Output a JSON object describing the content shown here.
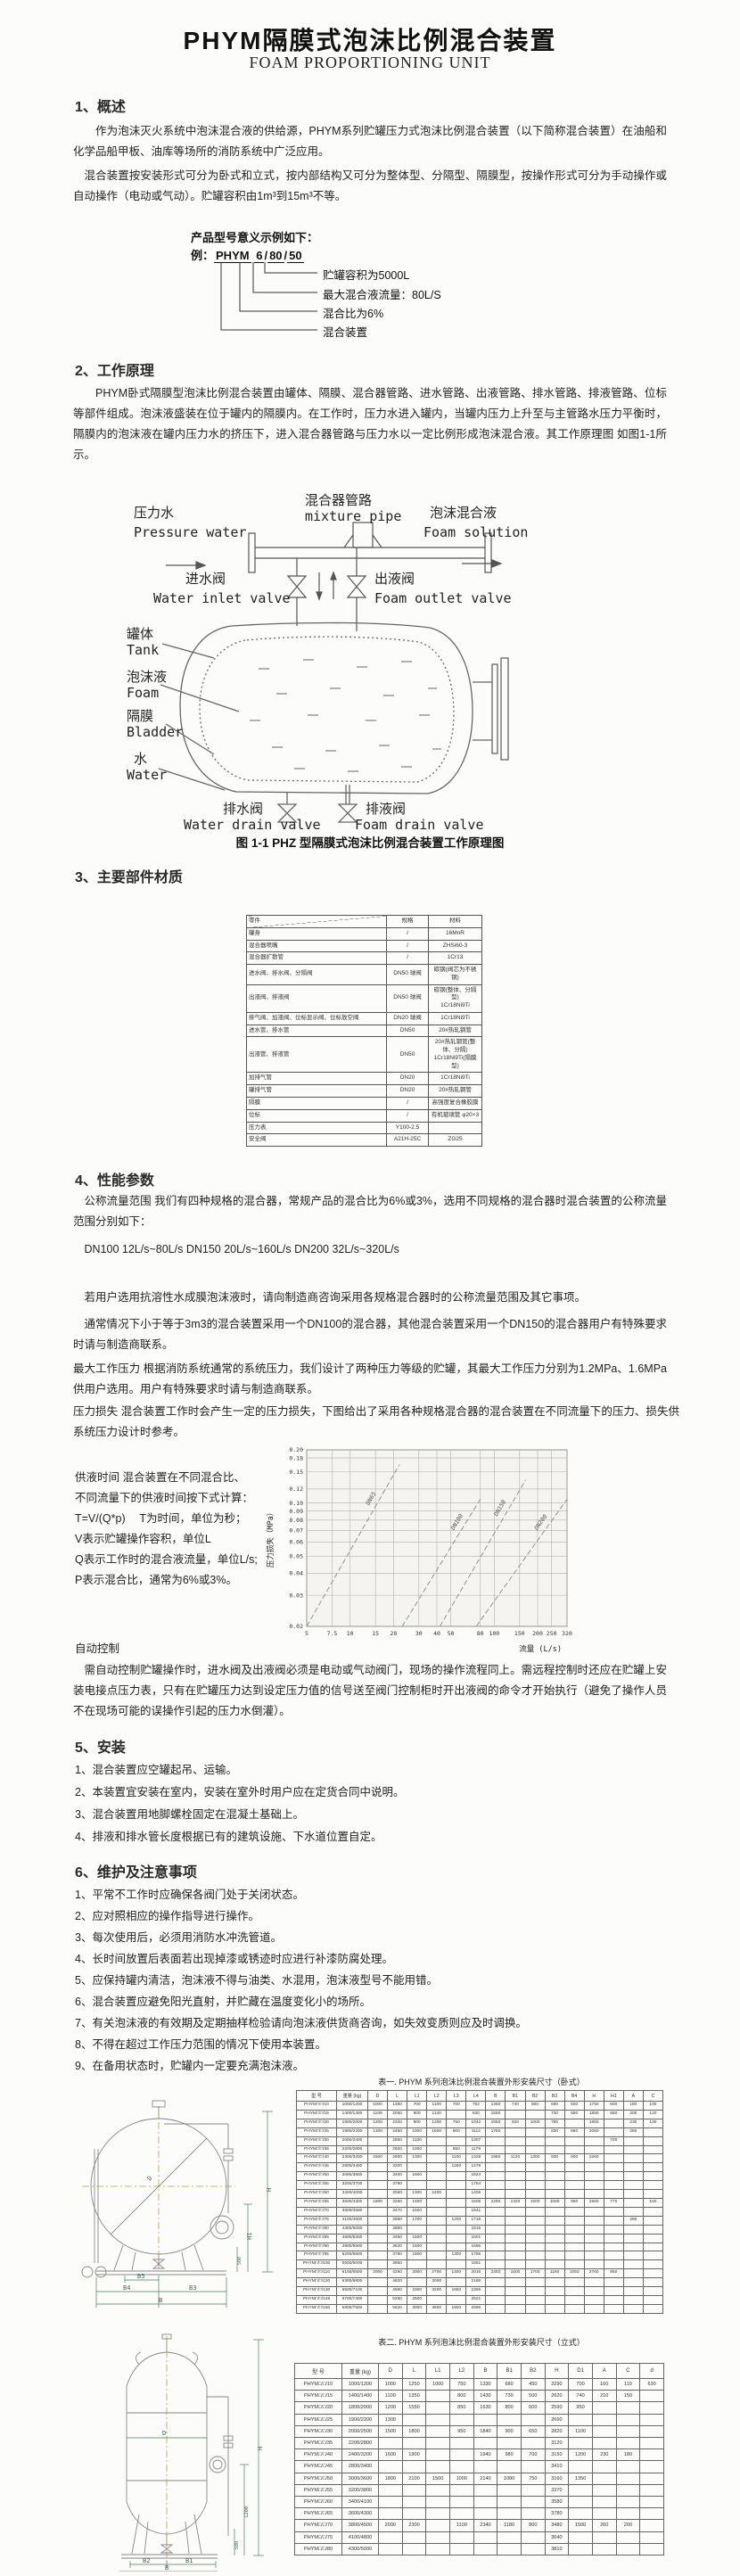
{
  "doc": {
    "title_zh": "PHYM隔膜式泡沫比例混合装置",
    "title_en": "FOAM PROPORTIONING UNIT"
  },
  "s1": {
    "heading": "1、概述",
    "p1": "作为泡沫灭火系统中泡沫混合液的供给源，PHYM系列贮罐压力式泡沫比例混合装置（以下简称混合装置）在油船和化学品船甲板、油库等场所的消防系统中广泛应用。",
    "p2": "混合装置按安装形式可分为卧式和立式，按内部结构又可分为整体型、分隔型、隔膜型，按操作形式可分为手动操作或自动操作（电动或气动）。贮罐容积由1m³到15m³不等。",
    "model_intro": "产品型号意义示例如下：",
    "model_prefix": "例：",
    "model_parts": [
      "PHYM",
      "6",
      "80",
      "50"
    ],
    "model_labels": [
      "贮罐容积为5000L",
      "最大混合液流量：80L/S",
      "混合比为6%",
      "混合装置"
    ]
  },
  "s2": {
    "heading": "2、工作原理",
    "p1": "PHYM卧式隔膜型泡沫比例混合装置由罐体、隔膜、混合器管路、进水管路、出液管路、排水管路、排液管路、位标等部件组成。泡沫液盛装在位于罐内的隔膜内。在工作时，压力水进入罐内，当罐内压力上升至与主管路水压力平衡时，隔膜内的泡沫液在罐内压力水的挤压下，进入混合器管路与压力水以一定比例形成泡沫混合液。其工作原理图 如图1-1所示。",
    "diagram": {
      "pressure_water_zh": "压力水",
      "pressure_water_en": "Pressure water",
      "mixture_pipe_zh": "混合器管路",
      "mixture_pipe_en": "mixture pipe",
      "foam_solution_zh": "泡沫混合液",
      "foam_solution_en": "Foam solution",
      "inlet_valve_zh": "进水阀",
      "inlet_valve_en": "Water inlet valve",
      "outlet_valve_zh": "出液阀",
      "outlet_valve_en": "Foam outlet valve",
      "tank_zh": "罐体",
      "tank_en": "Tank",
      "foam_zh": "泡沫液",
      "foam_en": "Foam",
      "bladder_zh": "隔膜",
      "bladder_en": "Bladder",
      "water_zh": "水",
      "water_en": "Water",
      "water_drain_zh": "排水阀",
      "water_drain_en": "Water drain valve",
      "foam_drain_zh": "排液阀",
      "foam_drain_en": "Foam drain valve",
      "caption": "图 1-1 PHZ 型隔膜式泡沫比例混合装置工作原理图"
    }
  },
  "s3": {
    "heading": "3、主要部件材质",
    "table": {
      "headers": [
        "零件",
        "规格",
        "材料"
      ],
      "rows": [
        [
          "罐身",
          "/",
          "16MnR"
        ],
        [
          "混合器喷嘴",
          "/",
          "ZHSi60-3"
        ],
        [
          "混合器扩散管",
          "/",
          "1Cr13"
        ],
        [
          "进水阀、排水阀、分隔阀",
          "DN50 球阀",
          "碳钢(阀芯为不锈钢)"
        ],
        [
          "出液阀、排液阀",
          "DN50 球阀",
          "碳钢(整体、分隔型)\n1Cr18Ni9Ti"
        ],
        [
          "排气阀、加液阀、位标显示阀、位标放空阀",
          "DN20 球阀",
          "1Cr18Ni9Ti"
        ],
        [
          "进水管、排水管",
          "DN50",
          "20#热轧钢管"
        ],
        [
          "出液管、排液管",
          "DN50",
          "20#热轧钢管(整体、分隔)\n1Cr18Ni9Ti(隔膜型)"
        ],
        [
          "加排气管",
          "DN20",
          "1Cr18Ni9Ti"
        ],
        [
          "罐排气管",
          "DN20",
          "20#热轧钢管"
        ],
        [
          "隔膜",
          "/",
          "高强度复合橡胶膜"
        ],
        [
          "位标",
          "/",
          "有机玻璃管 φ20×3"
        ],
        [
          "压力表",
          "Y100-2.5",
          ""
        ],
        [
          "安全阀",
          "A21H-25C",
          "ZG25"
        ]
      ]
    }
  },
  "s4": {
    "heading": "4、性能参数",
    "p_flow": "公称流量范围  我们有四种规格的混合器，常规产品的混合比为6%或3%，选用不同规格的混合器时混合装置的公称流量范围分别如下：",
    "p_dn": "DN100  12L/s~80L/s    DN150  20L/s~160L/s    DN200  32L/s~320L/s",
    "p_afff": "若用户选用抗溶性水成膜泡沫液时，请向制造商咨询采用各规格混合器时的公称流量范围及其它事项。",
    "p_usual": "通常情况下小于等于3m3的混合装置采用一个DN100的混合器，其他混合装置采用一个DN150的混合器用户有特殊要求时请与制造商联系。",
    "p_maxp": "最大工作压力 根据消防系统通常的系统压力，我们设计了两种压力等级的贮罐，其最大工作压力分别为1.2MPa、1.6MPa供用户选用。用户有特殊要求时请与制造商联系。",
    "p_loss": "压力损失  混合装置工作时会产生一定的压力损失，下图给出了采用各种规格混合器的混合装置在不同流量下的压力、损失供系统压力设计时参考。",
    "supply_lines": [
      "供液时间  混合装置在不同混合比、",
      "不同流量下的供液时间按下式计算：",
      "T=V/(Q*p)　 T为时间，单位为秒；",
      "V表示贮罐操作容积，单位L",
      "Q表示工作时的混合液流量，单位L/s;",
      "P表示混合比，通常为6%或3%。"
    ],
    "auto_heading": "自动控制",
    "auto_p": "需自动控制贮罐操作时，进水阀及出液阀必须是电动或气动阀门，现场的操作流程同上。需远程控制时还应在贮罐上安装电接点压力表，只有在贮罐压力达到设定压力值的信号送至阀门控制柜时开出液阀的命令才开始执行（避免了操作人员不在现场可能的误操作引起的压力水倒灌）。"
  },
  "chart_data": {
    "type": "line",
    "title": "混合装置压力损失曲线",
    "xlabel": "流量 (L/s)",
    "ylabel": "压力损失（MPa）",
    "x_scale": "log",
    "y_scale": "log",
    "xlim": [
      5,
      320
    ],
    "ylim": [
      0.02,
      0.2
    ],
    "grid": true,
    "x_ticks": [
      "5",
      "7.5",
      "10",
      "15",
      "20",
      "30",
      "40",
      "50",
      "80",
      "100",
      "150",
      "200",
      "250",
      "320"
    ],
    "y_ticks": [
      "0.20",
      "0.18",
      "0.15",
      "0.12",
      "0.10",
      "0.09",
      "0.08",
      "0.07",
      "0.06",
      "0.05",
      "0.04",
      "0.03",
      "0.02"
    ],
    "series": [
      {
        "name": "DN65",
        "x": [
          5,
          22
        ],
        "y": [
          0.02,
          0.165
        ]
      },
      {
        "name": "DN100",
        "x": [
          23,
          80
        ],
        "y": [
          0.02,
          0.105
        ]
      },
      {
        "name": "DN150",
        "x": [
          42,
          165
        ],
        "y": [
          0.02,
          0.135
        ]
      },
      {
        "name": "DN200",
        "x": [
          75,
          320
        ],
        "y": [
          0.02,
          0.105
        ]
      }
    ]
  },
  "s5": {
    "heading": "5、安装",
    "items": [
      "1、混合装置应空罐起吊、运输。",
      "2、本装置宜安装在室内，安装在室外时用户应在定货合同中说明。",
      "3、混合装置用地脚螺栓固定在混凝土基础上。",
      "4、排液和排水管长度根据已有的建筑设施、下水道位置自定。"
    ]
  },
  "s6": {
    "heading": "6、维护及注意事项",
    "items": [
      "1、平常不工作时应确保各阀门处于关闭状态。",
      "2、应对照相应的操作指导进行操作。",
      "3、每次使用后，必须用消防水冲洗管道。",
      "4、长时间放置后表面若出现掉漆或锈迹时应进行补漆防腐处理。",
      "5、应保持罐内清洁，泡沫液不得与油类、水混用，泡沫液型号不能用错。",
      "6、混合装置应避免阳光直射，并贮藏在温度变化小的场所。",
      "7、有关泡沫液的有效期及定期抽样检验请向泡沫液供货商咨询，如失效变质则应及时调换。",
      "8、不得在超过工作压力范围的情况下使用本装置。",
      "9、在备用状态时，贮罐内一定要充满泡沫液。"
    ]
  },
  "t1": {
    "caption": "表一. PHYM 系列泡沫比例混合装置外形安装尺寸（卧式）",
    "table": {
      "headers": [
        "型  号",
        "重量 (kg)",
        "D",
        "L",
        "L1",
        "L2",
        "L3",
        "L4",
        "B",
        "B1",
        "B2",
        "B3",
        "B4",
        "H",
        "H1",
        "A",
        "C"
      ],
      "rows": [
        [
          "PHYM□/□/10",
          "1000/1200",
          "1000",
          "1360",
          "700",
          "1100",
          "700",
          "763",
          "1450",
          "740",
          "900",
          "680",
          "600",
          "1750",
          "600",
          "180",
          "100"
        ],
        [
          "PHYM□/□/15",
          "1400/1400",
          "1100",
          "2050",
          "800",
          "1140",
          "",
          "930",
          "1550",
          "",
          "",
          "730",
          "650",
          "1850",
          "650",
          "200",
          "120"
        ],
        [
          "PHYM□/□/20",
          "1800/2000",
          "1200",
          "2320",
          "900",
          "1200",
          "750",
          "1042",
          "1650",
          "820",
          "1000",
          "780",
          "",
          "1950",
          "",
          "230",
          "130"
        ],
        [
          "PHYM□/□/25",
          "1900/2200",
          "1300",
          "2460",
          "1000",
          "1600",
          "900",
          "1112",
          "1750",
          "",
          "",
          "830",
          "680",
          "2050",
          "",
          "260",
          ""
        ],
        [
          "PHYM□/□/30",
          "2000/2400",
          "",
          "2850",
          "1100",
          "",
          "",
          "1307",
          "",
          "",
          "",
          "",
          "",
          "",
          "700",
          "",
          ""
        ],
        [
          "PHYM□/□/35",
          "2200/2800",
          "",
          "2600",
          "1000",
          "",
          "950",
          "1179",
          "",
          "",
          "",
          "",
          "",
          "",
          "",
          "",
          ""
        ],
        [
          "PHYM□/□/40",
          "2400/3200",
          "1500",
          "2900",
          "1300",
          "",
          "1100",
          "1329",
          "1950",
          "1120",
          "1300",
          "930",
          "800",
          "2260",
          "",
          "",
          ""
        ],
        [
          "PHYM□/□/45",
          "2800/3400",
          "",
          "3200",
          "",
          "",
          "1250",
          "1479",
          "",
          "",
          "",
          "",
          "",
          "",
          "",
          "",
          ""
        ],
        [
          "PHYM□/□/50",
          "3000/3800",
          "",
          "3400",
          "1600",
          "",
          "",
          "1624",
          "",
          "",
          "",
          "",
          "",
          "",
          "",
          "",
          ""
        ],
        [
          "PHYM□/□/55",
          "3200/3700",
          "",
          "3790",
          "",
          "",
          "",
          "1754",
          "",
          "",
          "",
          "",
          "",
          "",
          "",
          "",
          ""
        ],
        [
          "PHYM□/□/60",
          "3400/4000",
          "",
          "3060",
          "1300",
          "2400",
          "",
          "1406",
          "",
          "",
          "",
          "",
          "",
          "",
          "",
          "",
          ""
        ],
        [
          "PHYM□/□/65",
          "3600/4300",
          "1800",
          "3260",
          "1400",
          "",
          "",
          "1506",
          "2250",
          "1320",
          "1500",
          "1080",
          "950",
          "2560",
          "770",
          "",
          "160"
        ],
        [
          "PHYM□/□/70",
          "3800/4500",
          "",
          "3470",
          "1500",
          "",
          "",
          "1641",
          "",
          "",
          "",
          "",
          "",
          "",
          "",
          "",
          ""
        ],
        [
          "PHYM□/□/75",
          "4100/4800",
          "",
          "3680",
          "1700",
          "",
          "1200",
          "1716",
          "",
          "",
          "",
          "",
          "",
          "",
          "",
          "280",
          ""
        ],
        [
          "PHYM□/□/80",
          "4300/5000",
          "",
          "3880",
          "",
          "",
          "",
          "1816",
          "",
          "",
          "",
          "",
          "",
          "",
          "",
          "",
          ""
        ],
        [
          "PHYM□/□/85",
          "4600/5300",
          "",
          "3450",
          "1500",
          "",
          "",
          "1601",
          "",
          "",
          "",
          "",
          "",
          "",
          "",
          "",
          ""
        ],
        [
          "PHYM□/□/90",
          "4900/5500",
          "",
          "3620",
          "1600",
          "",
          "",
          "1686",
          "",
          "",
          "",
          "",
          "",
          "",
          "",
          "",
          ""
        ],
        [
          "PHYM□/□/95",
          "5200/5800",
          "",
          "3780",
          "1800",
          "",
          "1300",
          "1765",
          "",
          "",
          "",
          "",
          "",
          "",
          "",
          "",
          ""
        ],
        [
          "PHYM□/□/100",
          "5500/6000",
          "",
          "3950",
          "",
          "",
          "",
          "1851",
          "",
          "",
          "",
          "",
          "",
          "",
          "",
          "",
          ""
        ],
        [
          "PHYM□/□/110",
          "6100/6500",
          "2000",
          "4280",
          "2000",
          "2700",
          "1400",
          "2016",
          "2450",
          "1500",
          "1700",
          "1180",
          "1050",
          "2760",
          "850",
          "",
          ""
        ],
        [
          "PHYM□/□/120",
          "6300/6800",
          "",
          "4620",
          "",
          "3000",
          "",
          "2186",
          "",
          "",
          "",
          "",
          "",
          "",
          "",
          "",
          ""
        ],
        [
          "PHYM□/□/130",
          "6500/7100",
          "",
          "4960",
          "2300",
          "3200",
          "1650",
          "2356",
          "",
          "",
          "",
          "",
          "",
          "",
          "",
          "",
          ""
        ],
        [
          "PHYM□/□/145",
          "6700/7400",
          "",
          "5280",
          "2500",
          "",
          "",
          "2521",
          "",
          "",
          "",
          "",
          "",
          "",
          "",
          "",
          ""
        ],
        [
          "PHYM□/□/150",
          "6800/7500",
          "",
          "5620",
          "3000",
          "3600",
          "1900",
          "2686",
          "",
          "",
          "",
          "",
          "",
          "",
          "",
          "",
          ""
        ]
      ]
    },
    "drawing_labels": {
      "d": "D",
      "h": "H",
      "h1": "H1",
      "b5": "B5",
      "b4": "B4",
      "b3": "B3",
      "b": "B",
      "dim500": "500"
    }
  },
  "t2": {
    "caption": "表二. PHYM 系列泡沫比例混合装置外形安装尺寸（立式）",
    "table": {
      "headers": [
        "型  号",
        "重量 (kg)",
        "D",
        "L",
        "L1",
        "L2",
        "B",
        "B1",
        "B2",
        "H",
        "D1",
        "A",
        "C",
        "d"
      ],
      "rows": [
        [
          "PHYM□/□/10",
          "1000/1200",
          "1000",
          "1250",
          "1000",
          "750",
          "1330",
          "680",
          "450",
          "2290",
          "700",
          "160",
          "110",
          "630"
        ],
        [
          "PHYM□/□/15",
          "1400/1400",
          "1100",
          "1350",
          "",
          "800",
          "1430",
          "730",
          "500",
          "2620",
          "740",
          "210",
          "150",
          ""
        ],
        [
          "PHYM□/□/20",
          "1800/2000",
          "1200",
          "1550",
          "",
          "850",
          "1630",
          "800",
          "600",
          "2590",
          "950",
          "",
          "",
          ""
        ],
        [
          "PHYM□/□/25",
          "1900/2200",
          "1300",
          "",
          "",
          "",
          "",
          "",
          "",
          "2690",
          "",
          "",
          "",
          ""
        ],
        [
          "PHYM□/□/30",
          "2000/2500",
          "1500",
          "1800",
          "",
          "950",
          "1840",
          "900",
          "650",
          "2820",
          "1100",
          "",
          "",
          ""
        ],
        [
          "PHYM□/□/35",
          "2200/2800",
          "",
          "",
          "",
          "",
          "",
          "",
          "",
          "3120",
          "",
          "",
          "",
          ""
        ],
        [
          "PHYM□/□/40",
          "2400/3200",
          "1600",
          "1900",
          "",
          "",
          "1940",
          "980",
          "700",
          "3150",
          "1200",
          "230",
          "180",
          ""
        ],
        [
          "PHYM□/□/45",
          "2800/3400",
          "",
          "",
          "",
          "",
          "",
          "",
          "",
          "3410",
          "",
          "",
          "",
          ""
        ],
        [
          "PHYM□/□/50",
          "3000/3600",
          "1800",
          "2100",
          "1500",
          "1000",
          "2140",
          "1080",
          "750",
          "3160",
          "1350",
          "",
          "",
          ""
        ],
        [
          "PHYM□/□/55",
          "3200/3800",
          "",
          "",
          "",
          "",
          "",
          "",
          "",
          "3370",
          "",
          "",
          "",
          ""
        ],
        [
          "PHYM□/□/60",
          "3400/4100",
          "",
          "",
          "",
          "",
          "",
          "",
          "",
          "3580",
          "",
          "",
          "",
          ""
        ],
        [
          "PHYM□/□/65",
          "3600/4300",
          "",
          "",
          "",
          "",
          "",
          "",
          "",
          "3780",
          "",
          "",
          "",
          ""
        ],
        [
          "PHYM□/□/70",
          "3800/4500",
          "2000",
          "2300",
          "",
          "1100",
          "2340",
          "1180",
          "800",
          "3480",
          "1500",
          "260",
          "200",
          ""
        ],
        [
          "PHYM□/□/75",
          "4100/4800",
          "",
          "",
          "",
          "",
          "",
          "",
          "",
          "3640",
          "",
          "",
          "",
          ""
        ],
        [
          "PHYM□/□/80",
          "4300/5000",
          "",
          "",
          "",
          "",
          "",
          "",
          "",
          "3810",
          "",
          "",
          "",
          ""
        ]
      ]
    },
    "drawing_labels": {
      "d": "D",
      "h": "H",
      "dim1200": "1200",
      "dim500": "500",
      "b2": "B2",
      "b1": "B1",
      "b": "B"
    }
  }
}
